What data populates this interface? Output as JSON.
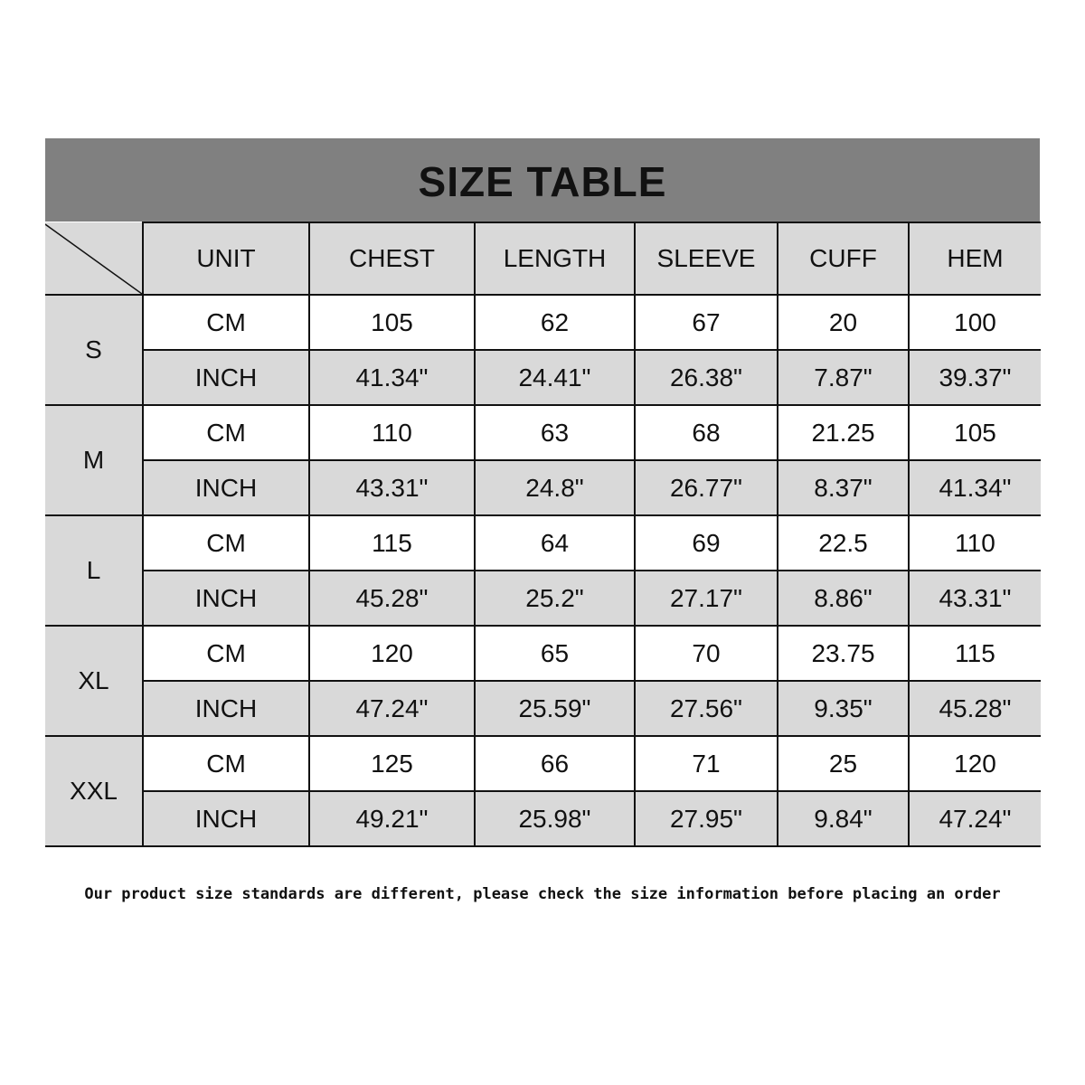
{
  "title": "SIZE TABLE",
  "table": {
    "headers": [
      "UNIT",
      "CHEST",
      "LENGTH",
      "SLEEVE",
      "CUFF",
      "HEM"
    ],
    "sizes": [
      {
        "size": "S",
        "rows": [
          {
            "unit": "CM",
            "values": [
              "105",
              "62",
              "67",
              "20",
              "100"
            ]
          },
          {
            "unit": "INCH",
            "values": [
              "41.34\"",
              "24.41\"",
              "26.38\"",
              "7.87\"",
              "39.37\""
            ]
          }
        ]
      },
      {
        "size": "M",
        "rows": [
          {
            "unit": "CM",
            "values": [
              "110",
              "63",
              "68",
              "21.25",
              "105"
            ]
          },
          {
            "unit": "INCH",
            "values": [
              "43.31\"",
              "24.8\"",
              "26.77\"",
              "8.37\"",
              "41.34\""
            ]
          }
        ]
      },
      {
        "size": "L",
        "rows": [
          {
            "unit": "CM",
            "values": [
              "115",
              "64",
              "69",
              "22.5",
              "110"
            ]
          },
          {
            "unit": "INCH",
            "values": [
              "45.28\"",
              "25.2\"",
              "27.17\"",
              "8.86\"",
              "43.31\""
            ]
          }
        ]
      },
      {
        "size": "XL",
        "rows": [
          {
            "unit": "CM",
            "values": [
              "120",
              "65",
              "70",
              "23.75",
              "115"
            ]
          },
          {
            "unit": "INCH",
            "values": [
              "47.24\"",
              "25.59\"",
              "27.56\"",
              "9.35\"",
              "45.28\""
            ]
          }
        ]
      },
      {
        "size": "XXL",
        "rows": [
          {
            "unit": "CM",
            "values": [
              "125",
              "66",
              "71",
              "25",
              "120"
            ]
          },
          {
            "unit": "INCH",
            "values": [
              "49.21\"",
              "25.98\"",
              "27.95\"",
              "9.84\"",
              "47.24\""
            ]
          }
        ]
      }
    ]
  },
  "note": "Our product size standards are different, please check the size information before placing an order",
  "colors": {
    "title_bar": "#808080",
    "header_cell": "#d9d9d9",
    "inch_row": "#d9d9d9",
    "cm_row": "#ffffff"
  }
}
